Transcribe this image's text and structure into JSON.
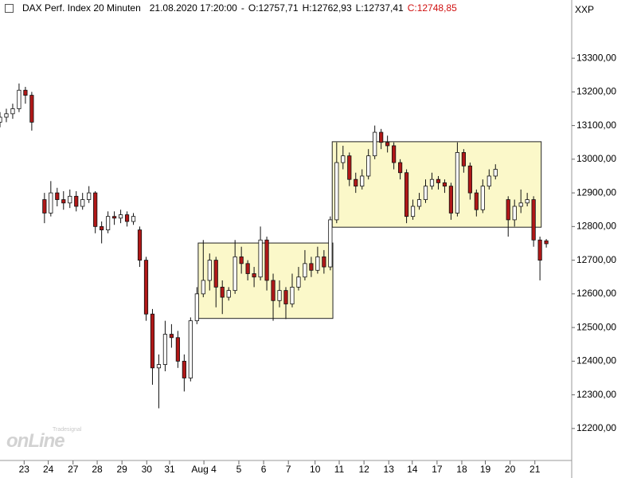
{
  "chart_data": {
    "type": "candlestick",
    "title": "DAX Perf. Index 20 Minuten",
    "timestamp": "21.08.2020 17:20:00",
    "separator": "-",
    "ohlc": [
      "O:12757,71",
      "H:12762,93",
      "L:12737,41",
      "C:12748,85"
    ],
    "symbol": "XXP",
    "watermark": "onLine",
    "watermark_sub": "Tradesignal",
    "up_color": "#ffffff",
    "down_color": "#b01818",
    "box_color": "#fbf8c9",
    "xlim": [
      0,
      90
    ],
    "ylim": [
      12105,
      13473
    ],
    "xticks": [
      {
        "value": 3.8,
        "label": "23"
      },
      {
        "value": 7.6,
        "label": "24"
      },
      {
        "value": 11.5,
        "label": "27"
      },
      {
        "value": 15.3,
        "label": "28"
      },
      {
        "value": 19.2,
        "label": "29"
      },
      {
        "value": 23.1,
        "label": "30"
      },
      {
        "value": 26.7,
        "label": "31"
      },
      {
        "value": 32.1,
        "label": "Aug 4"
      },
      {
        "value": 37.6,
        "label": "5"
      },
      {
        "value": 41.5,
        "label": "6"
      },
      {
        "value": 45.4,
        "label": "7"
      },
      {
        "value": 49.6,
        "label": "10"
      },
      {
        "value": 53.4,
        "label": "11"
      },
      {
        "value": 57.3,
        "label": "12"
      },
      {
        "value": 61.2,
        "label": "13"
      },
      {
        "value": 64.9,
        "label": "14"
      },
      {
        "value": 68.8,
        "label": "17"
      },
      {
        "value": 72.7,
        "label": "18"
      },
      {
        "value": 76.4,
        "label": "19"
      },
      {
        "value": 80.3,
        "label": "20"
      },
      {
        "value": 84.2,
        "label": "21"
      }
    ],
    "yticks": [
      {
        "value": 12200,
        "label": "12200,00"
      },
      {
        "value": 12300,
        "label": "12300,00"
      },
      {
        "value": 12400,
        "label": "12400,00"
      },
      {
        "value": 12500,
        "label": "12500,00"
      },
      {
        "value": 12600,
        "label": "12600,00"
      },
      {
        "value": 12700,
        "label": "12700,00"
      },
      {
        "value": 12800,
        "label": "12800,00"
      },
      {
        "value": 12900,
        "label": "12900,00"
      },
      {
        "value": 13000,
        "label": "13000,00"
      },
      {
        "value": 13100,
        "label": "13100,00"
      },
      {
        "value": 13200,
        "label": "13200,00"
      },
      {
        "value": 13300,
        "label": "13300,00"
      }
    ],
    "boxes": [
      {
        "xlim": [
          31.2,
          52.4
        ],
        "ylim": [
          12527,
          12751
        ]
      },
      {
        "xlim": [
          52.3,
          85.2
        ],
        "ylim": [
          12798,
          13052
        ]
      }
    ],
    "x": [
      0,
      1,
      2,
      3,
      4,
      5,
      7,
      8,
      9,
      10,
      11,
      12,
      13,
      14,
      15,
      16,
      17,
      18,
      19,
      20,
      21,
      22,
      23,
      24,
      25,
      26,
      27,
      28,
      29,
      30,
      31,
      32,
      33,
      34,
      35,
      36,
      37,
      38,
      39,
      40,
      41,
      42,
      43,
      44,
      45,
      46,
      47,
      48,
      49,
      50,
      51,
      52,
      53,
      54,
      55,
      56,
      57,
      58,
      59,
      60,
      61,
      62,
      63,
      64,
      65,
      66,
      67,
      68,
      69,
      70,
      71,
      72,
      73,
      74,
      75,
      76,
      77,
      78,
      80,
      81,
      82,
      83,
      84,
      85,
      86
    ],
    "open": [
      13110,
      13125,
      13135,
      13150,
      13205,
      13190,
      12880,
      12840,
      12900,
      12880,
      12870,
      12890,
      12860,
      12880,
      12900,
      12800,
      12790,
      12830,
      12825,
      12835,
      12815,
      12790,
      12700,
      12540,
      12380,
      12390,
      12480,
      12470,
      12400,
      12350,
      12520,
      12600,
      12640,
      12700,
      12620,
      12590,
      12610,
      12710,
      12690,
      12660,
      12650,
      12760,
      12640,
      12580,
      12610,
      12570,
      12620,
      12650,
      12690,
      12670,
      12710,
      12680,
      12820,
      12990,
      13010,
      12940,
      12920,
      12950,
      13010,
      13080,
      13050,
      13040,
      12990,
      12960,
      12830,
      12860,
      12880,
      12920,
      12940,
      12930,
      12920,
      12840,
      13020,
      12980,
      12900,
      12850,
      12920,
      12950,
      12880,
      12820,
      12860,
      12870,
      12880,
      12760,
      12757.71
    ],
    "high": [
      13140,
      13150,
      13165,
      13225,
      13215,
      13200,
      12900,
      12935,
      12915,
      12905,
      12910,
      12905,
      12900,
      12920,
      12905,
      12815,
      12845,
      12845,
      12850,
      12845,
      12840,
      12800,
      12710,
      12555,
      12420,
      12520,
      12510,
      12490,
      12420,
      12530,
      12620,
      12760,
      12720,
      12710,
      12640,
      12620,
      12760,
      12740,
      12700,
      12680,
      12800,
      12770,
      12660,
      12640,
      12620,
      12660,
      12680,
      12730,
      12710,
      12740,
      12730,
      12830,
      13050,
      13040,
      13020,
      12960,
      12970,
      13030,
      13100,
      13090,
      13070,
      13050,
      13000,
      12970,
      12880,
      12900,
      12940,
      12960,
      12950,
      12940,
      12930,
      13050,
      13030,
      12990,
      12910,
      12940,
      12970,
      12985,
      12890,
      12880,
      12910,
      12900,
      12890,
      12770,
      12762.93
    ],
    "low": [
      13095,
      13110,
      13120,
      13140,
      13165,
      13085,
      12810,
      12830,
      12860,
      12850,
      12855,
      12845,
      12850,
      12870,
      12780,
      12750,
      12780,
      12805,
      12810,
      12800,
      12805,
      12680,
      12520,
      12330,
      12260,
      12370,
      12440,
      12380,
      12310,
      12340,
      12510,
      12590,
      12610,
      12560,
      12540,
      12580,
      12600,
      12660,
      12640,
      12620,
      12640,
      12610,
      12520,
      12560,
      12525,
      12560,
      12610,
      12640,
      12650,
      12660,
      12660,
      12670,
      12810,
      12970,
      12920,
      12900,
      12910,
      12940,
      13000,
      13030,
      13020,
      12970,
      12940,
      12810,
      12820,
      12850,
      12870,
      12910,
      12910,
      12900,
      12820,
      12830,
      12960,
      12880,
      12830,
      12840,
      12910,
      12940,
      12770,
      12800,
      12840,
      12860,
      12740,
      12640,
      12737.41
    ],
    "close": [
      13125,
      13135,
      13150,
      13205,
      13190,
      13110,
      12840,
      12900,
      12880,
      12870,
      12890,
      12860,
      12880,
      12900,
      12800,
      12790,
      12830,
      12825,
      12835,
      12815,
      12830,
      12700,
      12540,
      12380,
      12390,
      12480,
      12470,
      12400,
      12350,
      12520,
      12600,
      12640,
      12700,
      12620,
      12590,
      12610,
      12710,
      12690,
      12660,
      12650,
      12760,
      12640,
      12580,
      12610,
      12570,
      12620,
      12650,
      12690,
      12670,
      12710,
      12680,
      12820,
      12990,
      13010,
      12940,
      12920,
      12950,
      13010,
      13080,
      13050,
      13040,
      12990,
      12960,
      12830,
      12860,
      12880,
      12920,
      12940,
      12930,
      12920,
      12840,
      13020,
      12980,
      12900,
      12850,
      12920,
      12950,
      12970,
      12820,
      12860,
      12870,
      12880,
      12760,
      12700,
      12748.85
    ]
  }
}
